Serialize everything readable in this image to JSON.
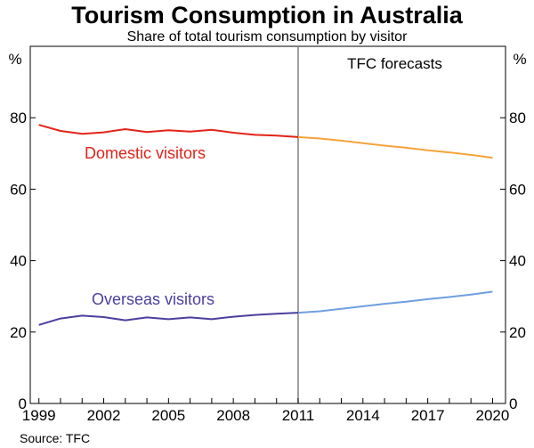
{
  "chart_data": {
    "type": "line",
    "title": "Tourism Consumption in Australia",
    "subtitle": "Share of total tourism consumption by visitor",
    "unit_left": "%",
    "unit_right": "%",
    "xlim": [
      1998.6,
      2020.6
    ],
    "ylim": [
      0,
      100
    ],
    "x_ticks": [
      1999,
      2002,
      2005,
      2008,
      2011,
      2014,
      2017,
      2020
    ],
    "x_tick_labels": [
      "1999",
      "2002",
      "2005",
      "2008",
      "2011",
      "2014",
      "2017",
      "2020"
    ],
    "y_ticks": [
      0,
      20,
      40,
      60,
      80
    ],
    "y_tick_labels": [
      "0",
      "20",
      "40",
      "60",
      "80"
    ],
    "forecast_start": 2011,
    "forecast_label": "TFC forecasts",
    "source": "Source: TFC",
    "colors": {
      "domestic_actual": "#e2231a",
      "domestic_forecast": "#f6a33b",
      "overseas_actual": "#4b3f9e",
      "overseas_forecast": "#6f9fdf",
      "divider": "#7f7f7f"
    },
    "series": [
      {
        "name": "Domestic visitors",
        "actual": {
          "x": [
            1999,
            2000,
            2001,
            2002,
            2003,
            2004,
            2005,
            2006,
            2007,
            2008,
            2009,
            2010,
            2011
          ],
          "y": [
            78.0,
            76.3,
            75.5,
            75.9,
            76.8,
            76.0,
            76.5,
            76.1,
            76.6,
            75.8,
            75.2,
            75.0,
            74.6
          ]
        },
        "forecast": {
          "x": [
            2011,
            2012,
            2013,
            2014,
            2015,
            2016,
            2017,
            2018,
            2019,
            2020
          ],
          "y": [
            74.6,
            74.2,
            73.6,
            72.9,
            72.2,
            71.6,
            70.9,
            70.3,
            69.6,
            68.8
          ]
        }
      },
      {
        "name": "Overseas visitors",
        "actual": {
          "x": [
            1999,
            2000,
            2001,
            2002,
            2003,
            2004,
            2005,
            2006,
            2007,
            2008,
            2009,
            2010,
            2011
          ],
          "y": [
            22.0,
            23.8,
            24.6,
            24.2,
            23.3,
            24.1,
            23.6,
            24.1,
            23.6,
            24.3,
            24.8,
            25.1,
            25.4
          ]
        },
        "forecast": {
          "x": [
            2011,
            2012,
            2013,
            2014,
            2015,
            2016,
            2017,
            2018,
            2019,
            2020
          ],
          "y": [
            25.4,
            25.8,
            26.5,
            27.2,
            27.9,
            28.5,
            29.2,
            29.8,
            30.5,
            31.3
          ]
        }
      }
    ]
  }
}
